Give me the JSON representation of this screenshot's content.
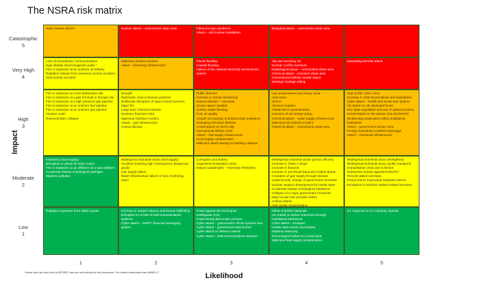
{
  "title": "The NSRA risk matrix",
  "axis": {
    "y_label": "Impact",
    "x_label": "Likelihood"
  },
  "colors": {
    "orange": "#FFC000",
    "red": "#FF0000",
    "yellow": "#FFFF00",
    "green": "#00B050"
  },
  "impact_levels": [
    {
      "name": "Catastrophic",
      "value": "5"
    },
    {
      "name": "Very High",
      "value": "4"
    },
    {
      "name": "High",
      "value": "3"
    },
    {
      "name": "Moderate",
      "value": "2"
    },
    {
      "name": "Low",
      "value": "1"
    }
  ],
  "likelihood_levels": [
    "1",
    "2",
    "3",
    "4",
    "5"
  ],
  "footnote": "*these risks are only held at SECRET and are not included in this document.  For further information see ANNEX C",
  "rows": [
    {
      "cells": [
        {
          "color": "orange",
          "items": [
            "State nuclear attack *"
          ]
        },
        {
          "color": "red",
          "items": [
            "Nuclear attack – unenclosed urban area"
          ]
        },
        {
          "color": "red",
          "items": [
            "Influenza-type pandemic",
            "Attack – civil nuclear installation"
          ]
        },
        {
          "color": "red",
          "items": [
            "Biological attack – unenclosed urban area"
          ]
        },
        {
          "color": "red",
          "items": []
        }
      ]
    },
    {
      "cells": [
        {
          "color": "yellow",
          "items": [
            "Loss of transatlantic communications",
            "High altitude electromagnetic pulse *",
            "Fire or explosion at an onshore oil refinery",
            "Radiation release from overseas nuclear accident",
            "Civil nuclear accident"
          ]
        },
        {
          "color": "orange",
          "items": [
            "Malicious aviation incident",
            "Attack – electricity infrastructure"
          ]
        },
        {
          "color": "red",
          "items": [
            "Fluvial flooding",
            "Coastal flooding",
            "Failure of the national electricity transmission system"
          ]
        },
        {
          "color": "red",
          "items": [
            "Ally war involving UK",
            "Nuclear conflict overseas",
            "Radiological attack – unenclosed urban area",
            "Chemical attack - enclosed urban area",
            "Conventional ballistic missile attack",
            "Strategic hostage taking"
          ]
        },
        {
          "color": "red",
          "items": [
            "Marauding terrorist attack"
          ]
        }
      ]
    },
    {
      "cells": [
        {
          "color": "yellow",
          "items": [
            "Fire or explosion at a fuel distribution site",
            "Fire or explosion at a gas terminal or storage site",
            "Fire or explosion at a high pressure gas pipeline",
            "Fire or explosion at an onshore fuel pipeline",
            "Fire or explosion at an onshore gas pipeline",
            "Aviation crash",
            "Reservoir/dam collapse"
          ]
        },
        {
          "color": "yellow",
          "items": [
            "Drought",
            "Diplomatic choice between partners",
            "Deliberate disruption of space based services",
            "Major fire",
            "Large toxic chemical release",
            "Systemic financial crisis",
            "Malicious maritime incident",
            "Attack – gas infrastructure",
            "Animal disease"
          ]
        },
        {
          "color": "orange",
          "items": [
            "Public disorder",
            "Increase in money laundering",
            "Natural disaster – overseas",
            "Severe space weather",
            "Surface water flooding",
            "Poor air quality",
            "Growth and spread of antimicrobial resistance",
            "Emerging infectious disease",
            "Armed attack on NATO ally",
            "International military crisis",
            "Attack – fuel supply infrastructure",
            "Food supply contamination",
            "Malicious attack leading to building collapse"
          ]
        },
        {
          "color": "orange",
          "items": [
            "Low temperatures and heavy snow",
            "Heat wave",
            "Storms",
            "Volcanic eruption",
            "Global rise in protectionism",
            "Coercion of UK foreign policy",
            "Chemical attack – water supply infrastructure",
            "Malicious rail network incident",
            "Chemical attack – unenclosed urban area"
          ]
        },
        {
          "color": "orange",
          "items": [
            "High profile cyber crime",
            "Increase in child sexual abuse and exploitation",
            "Cyber attack – health and social care system",
            "CB attack on UK deployed forces",
            "Non state acquisition and use of advanced arms",
            "Armed attack on UK partner (non EU/NATO)",
            "Weakening cooperation within multilateral institutions",
            "Attack – government secure zone",
            "Foreign investment enabled espionage",
            "Attack – chemicals infrastructure"
          ]
        }
      ]
    },
    {
      "cells": [
        {
          "color": "green",
          "items": [
            "Insolvency (fuel supply)",
            "Disruption to global oil trade routes",
            "Fire or explosion at an offshore oil or gas platform",
            "Accidental release of biological pathogen",
            "Maritime pollution"
          ]
        },
        {
          "color": "yellow",
          "items": [
            "Widespread industrial action (fuel supply)",
            "Accident involving high consequence dangerous goods",
            "Gas supply failure",
            "Water infrastructure failure or loss of drinking water"
          ]
        },
        {
          "color": "yellow",
          "items": [
            "Corruption and bribery",
            "Organised immigration crime",
            "Natural catastrophe – Overseas Territories"
          ]
        },
        {
          "color": "yellow",
          "items": [
            "Widespread industrial action (prison officers)",
            "Increase in Class A drugs",
            "Increase in firearms",
            "Increase in non-fiscal fraud and market abuse",
            "Cessation of gas supply through Ukraine",
            "Undemocratic change of government overseas",
            "Nuclear weapon development by hostile state",
            "Accidental release of biological substance",
            "Collapse of a major government contractor",
            "Major social care provider failure",
            "Anthrax letters",
            "High profile assassination"
          ]
        },
        {
          "color": "yellow",
          "items": [
            "Widespread industrial action (firefighters)",
            "Widespread industrial action (public transport)",
            "Humanitarian crisis due to famine",
            "Subversive activity against EU/NATO",
            "Terrorist attack overseas",
            "Person-borne improvised explosive device",
            "Escalation in Northern Ireland related terrorism"
          ]
        }
      ]
    },
    {
      "cells": [
        {
          "color": "green",
          "items": [
            "Radiation exposure from stolen goods"
          ]
        },
        {
          "color": "green",
          "items": [
            "Increase in modern slavery and human trafficking",
            "Disruption to or loss of telecommunications systems",
            "Cyber attack – SWIFT financial messaging system"
          ]
        },
        {
          "color": "green",
          "items": [
            "Fraud against the Exchequer",
            "Earthquake (UK)",
            "Undermining democratic process",
            "Cyber attack – government critical systems loss",
            "Cyber attack – government data breach",
            "Cyber attack on defence assets",
            "Cyber attack – telecommunications systems"
          ]
        },
        {
          "color": "green",
          "items": [
            "Inflow of British Nationals",
            "UK unable to deliver outcomes through multilateral institutions",
            "Cyber attack – transport",
            "Hostile state exerts sovereignty",
            "Maritime insecurity",
            "Technological failure at a retail bank",
            "Malicious food supply contamination"
          ]
        },
        {
          "color": "green",
          "items": [
            "UK response to ICJ Advisory Opinion"
          ]
        }
      ]
    }
  ]
}
